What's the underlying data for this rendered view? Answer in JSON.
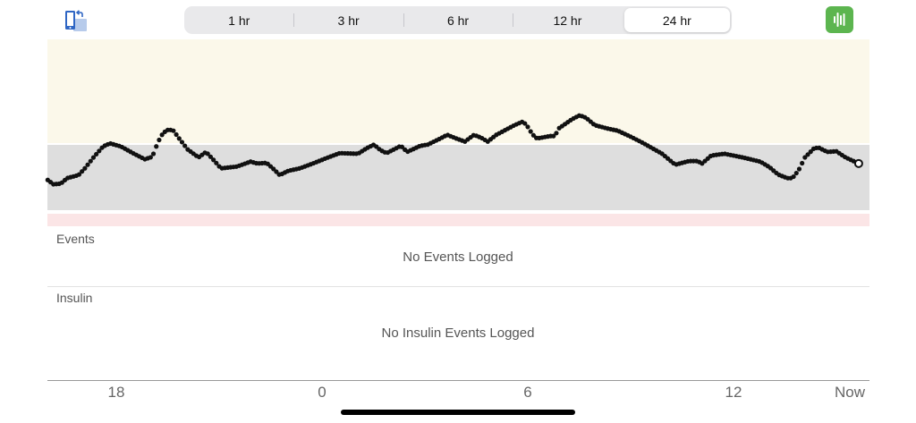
{
  "header": {
    "rotate_icon": "phone-rotate-icon",
    "time_ranges": [
      {
        "label": "1 hr",
        "selected": false
      },
      {
        "label": "3 hr",
        "selected": false
      },
      {
        "label": "6 hr",
        "selected": false
      },
      {
        "label": "12 hr",
        "selected": false
      },
      {
        "label": "24 hr",
        "selected": true
      }
    ],
    "waveform_icon": "waveform-icon",
    "accent_color": "#5cb54f"
  },
  "events": {
    "title": "Events",
    "empty": "No Events Logged"
  },
  "insulin": {
    "title": "Insulin",
    "empty": "No Insulin Events Logged"
  },
  "chart_data": {
    "type": "scatter",
    "zone_colors": {
      "high": "#fbf8ea",
      "target": "#dedede",
      "urgent_low": "#fbe5e6"
    },
    "x_ticks": [
      "18",
      "0",
      "6",
      "12",
      "Now"
    ],
    "grid": false,
    "points": [
      [
        "16:00",
        121
      ],
      [
        "16:10",
        114
      ],
      [
        "16:23",
        115
      ],
      [
        "16:34",
        124
      ],
      [
        "16:54",
        129
      ],
      [
        "17:05",
        140
      ],
      [
        "17:21",
        159
      ],
      [
        "17:37",
        176
      ],
      [
        "17:49",
        181
      ],
      [
        "18:08",
        176
      ],
      [
        "18:31",
        164
      ],
      [
        "18:50",
        155
      ],
      [
        "19:03",
        159
      ],
      [
        "19:10",
        176
      ],
      [
        "19:18",
        193
      ],
      [
        "19:28",
        203
      ],
      [
        "19:39",
        203
      ],
      [
        "19:50",
        189
      ],
      [
        "20:05",
        171
      ],
      [
        "20:24",
        158
      ],
      [
        "20:37",
        167
      ],
      [
        "20:52",
        152
      ],
      [
        "21:03",
        140
      ],
      [
        "21:31",
        143
      ],
      [
        "21:55",
        151
      ],
      [
        "22:07",
        148
      ],
      [
        "22:23",
        149
      ],
      [
        "22:34",
        140
      ],
      [
        "22:46",
        129
      ],
      [
        "23:01",
        136
      ],
      [
        "23:21",
        140
      ],
      [
        "23:44",
        148
      ],
      [
        "00:08",
        157
      ],
      [
        "00:31",
        165
      ],
      [
        "01:03",
        164
      ],
      [
        "01:18",
        173
      ],
      [
        "01:31",
        179
      ],
      [
        "01:42",
        170
      ],
      [
        "01:53",
        165
      ],
      [
        "02:18",
        177
      ],
      [
        "02:29",
        167
      ],
      [
        "02:52",
        177
      ],
      [
        "03:05",
        179
      ],
      [
        "03:27",
        189
      ],
      [
        "03:39",
        195
      ],
      [
        "03:55",
        189
      ],
      [
        "04:10",
        184
      ],
      [
        "04:26",
        195
      ],
      [
        "04:39",
        190
      ],
      [
        "04:50",
        184
      ],
      [
        "05:05",
        195
      ],
      [
        "05:37",
        211
      ],
      [
        "05:52",
        217
      ],
      [
        "06:00",
        208
      ],
      [
        "06:08",
        196
      ],
      [
        "06:16",
        189
      ],
      [
        "06:39",
        193
      ],
      [
        "06:47",
        193
      ],
      [
        "06:55",
        206
      ],
      [
        "07:18",
        221
      ],
      [
        "07:31",
        227
      ],
      [
        "07:42",
        223
      ],
      [
        "07:57",
        211
      ],
      [
        "08:21",
        205
      ],
      [
        "08:37",
        202
      ],
      [
        "09:00",
        192
      ],
      [
        "09:23",
        181
      ],
      [
        "09:55",
        164
      ],
      [
        "10:18",
        146
      ],
      [
        "10:42",
        152
      ],
      [
        "10:57",
        152
      ],
      [
        "11:05",
        148
      ],
      [
        "11:21",
        161
      ],
      [
        "11:44",
        164
      ],
      [
        "12:16",
        158
      ],
      [
        "12:47",
        151
      ],
      [
        "13:03",
        142
      ],
      [
        "13:18",
        130
      ],
      [
        "13:34",
        124
      ],
      [
        "13:43",
        124
      ],
      [
        "13:54",
        137
      ],
      [
        "14:05",
        158
      ],
      [
        "14:21",
        173
      ],
      [
        "14:29",
        174
      ],
      [
        "14:44",
        167
      ],
      [
        "15:00",
        168
      ],
      [
        "15:16",
        158
      ],
      [
        "15:39",
        148
      ]
    ]
  }
}
